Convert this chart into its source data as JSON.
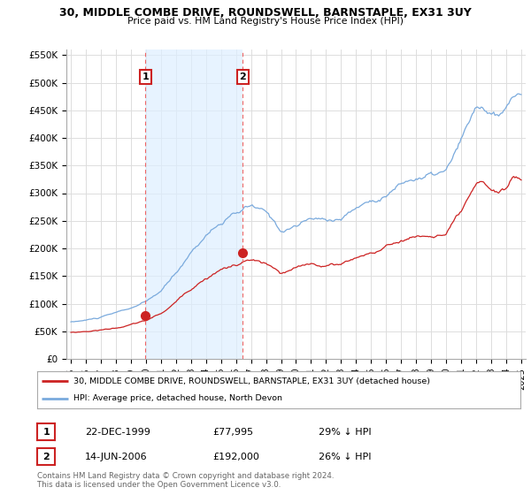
{
  "title": "30, MIDDLE COMBE DRIVE, ROUNDSWELL, BARNSTAPLE, EX31 3UY",
  "subtitle": "Price paid vs. HM Land Registry's House Price Index (HPI)",
  "ylim": [
    0,
    560000
  ],
  "yticks": [
    0,
    50000,
    100000,
    150000,
    200000,
    250000,
    300000,
    350000,
    400000,
    450000,
    500000,
    550000
  ],
  "ytick_labels": [
    "£0",
    "£50K",
    "£100K",
    "£150K",
    "£200K",
    "£250K",
    "£300K",
    "£350K",
    "£400K",
    "£450K",
    "£500K",
    "£550K"
  ],
  "xlim_start": 1994.7,
  "xlim_end": 2025.3,
  "background_color": "#ffffff",
  "plot_bg_color": "#ffffff",
  "grid_color": "#dddddd",
  "purchase1_date": 1999.975,
  "purchase1_price": 77995,
  "purchase1_label": "1",
  "purchase1_text": "22-DEC-1999",
  "purchase1_amount": "£77,995",
  "purchase1_hpi": "29% ↓ HPI",
  "purchase2_date": 2006.45,
  "purchase2_price": 192000,
  "purchase2_label": "2",
  "purchase2_text": "14-JUN-2006",
  "purchase2_amount": "£192,000",
  "purchase2_hpi": "26% ↓ HPI",
  "line_color_property": "#cc2222",
  "line_color_hpi": "#7aaadd",
  "shade_color": "#ddeeff",
  "legend_property": "30, MIDDLE COMBE DRIVE, ROUNDSWELL, BARNSTAPLE, EX31 3UY (detached house)",
  "legend_hpi": "HPI: Average price, detached house, North Devon",
  "footer": "Contains HM Land Registry data © Crown copyright and database right 2024.\nThis data is licensed under the Open Government Licence v3.0.",
  "vline_color": "#ee6666",
  "marker_color_property": "#cc2222"
}
